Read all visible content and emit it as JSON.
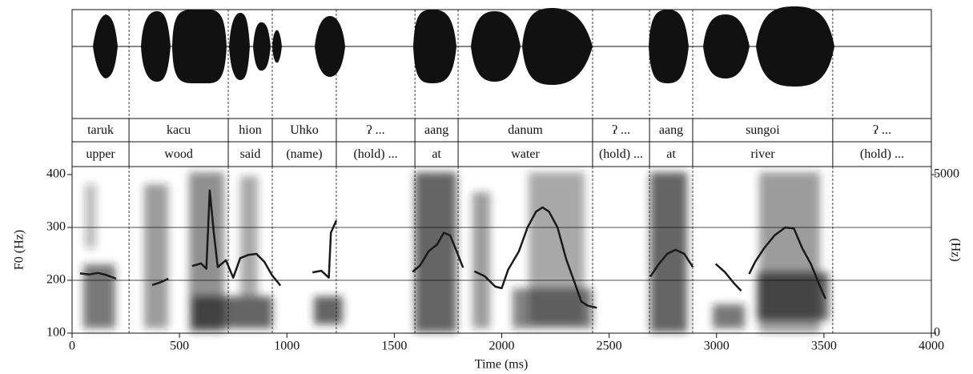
{
  "chart_data": {
    "type": "line",
    "xlabel": "Time (ms)",
    "ylabel": "F0 (Hz)",
    "y2label": "(Hz)",
    "xlim": [
      0,
      4000
    ],
    "xticks": [
      0,
      500,
      1000,
      1500,
      2000,
      2500,
      3000,
      3500,
      4000
    ],
    "ylim": [
      100,
      400
    ],
    "yticks": [
      100,
      200,
      300,
      400
    ],
    "y2lim": [
      0,
      5000
    ],
    "y2ticks": [
      0,
      5000
    ],
    "grid": true,
    "color": "#1a1a1a",
    "tiers": [
      {
        "intervals": [
          {
            "start": 0,
            "end": 265,
            "text": "taruk"
          },
          {
            "start": 265,
            "end": 727,
            "text": "kacu"
          },
          {
            "start": 727,
            "end": 932,
            "text": "hion"
          },
          {
            "start": 932,
            "end": 1230,
            "text": "Uhko"
          },
          {
            "start": 1230,
            "end": 1596,
            "text": "ʔ ..."
          },
          {
            "start": 1596,
            "end": 1797,
            "text": "aang"
          },
          {
            "start": 1797,
            "end": 2423,
            "text": "danum"
          },
          {
            "start": 2423,
            "end": 2688,
            "text": "ʔ ..."
          },
          {
            "start": 2688,
            "end": 2889,
            "text": "aang"
          },
          {
            "start": 2889,
            "end": 3541,
            "text": "sungoi"
          },
          {
            "start": 3541,
            "end": 4000,
            "text": "ʔ ..."
          }
        ]
      },
      {
        "intervals": [
          {
            "start": 0,
            "end": 265,
            "text": "upper"
          },
          {
            "start": 265,
            "end": 727,
            "text": "wood"
          },
          {
            "start": 727,
            "end": 932,
            "text": "said"
          },
          {
            "start": 932,
            "end": 1230,
            "text": "(name)"
          },
          {
            "start": 1230,
            "end": 1596,
            "text": "(hold) ..."
          },
          {
            "start": 1596,
            "end": 1797,
            "text": "at"
          },
          {
            "start": 1797,
            "end": 2423,
            "text": "water"
          },
          {
            "start": 2423,
            "end": 2688,
            "text": "(hold) ..."
          },
          {
            "start": 2688,
            "end": 2889,
            "text": "at"
          },
          {
            "start": 2889,
            "end": 3541,
            "text": "river"
          },
          {
            "start": 3541,
            "end": 4000,
            "text": "(hold) ..."
          }
        ]
      }
    ],
    "contours": [
      {
        "x": [
          37,
          80,
          120,
          160,
          205
        ],
        "values": [
          213,
          211,
          214,
          210,
          203
        ]
      },
      {
        "x": [
          373,
          410,
          448
        ],
        "values": [
          191,
          196,
          203
        ]
      },
      {
        "x": [
          559,
          600,
          625,
          641,
          660,
          678,
          716,
          750,
          783,
          820,
          858,
          895,
          930,
          970
        ],
        "values": [
          227,
          232,
          222,
          370,
          290,
          225,
          238,
          205,
          242,
          248,
          250,
          235,
          210,
          190
        ]
      },
      {
        "x": [
          1119,
          1160,
          1195,
          1205,
          1230
        ],
        "values": [
          215,
          218,
          205,
          290,
          313
        ]
      },
      {
        "x": [
          1585,
          1620,
          1660,
          1700,
          1730,
          1760,
          1790,
          1820
        ],
        "values": [
          216,
          228,
          255,
          268,
          290,
          285,
          255,
          224
        ]
      },
      {
        "x": [
          1873,
          1920,
          1970,
          2000,
          2030,
          2080,
          2120,
          2160,
          2190,
          2220,
          2260,
          2300,
          2340,
          2370,
          2400,
          2443
        ],
        "values": [
          217,
          208,
          188,
          185,
          220,
          255,
          300,
          330,
          338,
          330,
          300,
          240,
          195,
          160,
          152,
          148
        ]
      },
      {
        "x": [
          2692,
          2730,
          2770,
          2810,
          2850,
          2890
        ],
        "values": [
          207,
          230,
          250,
          258,
          250,
          225
        ]
      },
      {
        "x": [
          2996,
          3040,
          3080,
          3115
        ],
        "values": [
          231,
          215,
          195,
          180
        ]
      },
      {
        "x": [
          3152,
          3180,
          3220,
          3270,
          3320,
          3360,
          3400,
          3440,
          3480,
          3507
        ],
        "values": [
          212,
          235,
          260,
          285,
          300,
          298,
          260,
          230,
          190,
          165
        ]
      }
    ]
  }
}
